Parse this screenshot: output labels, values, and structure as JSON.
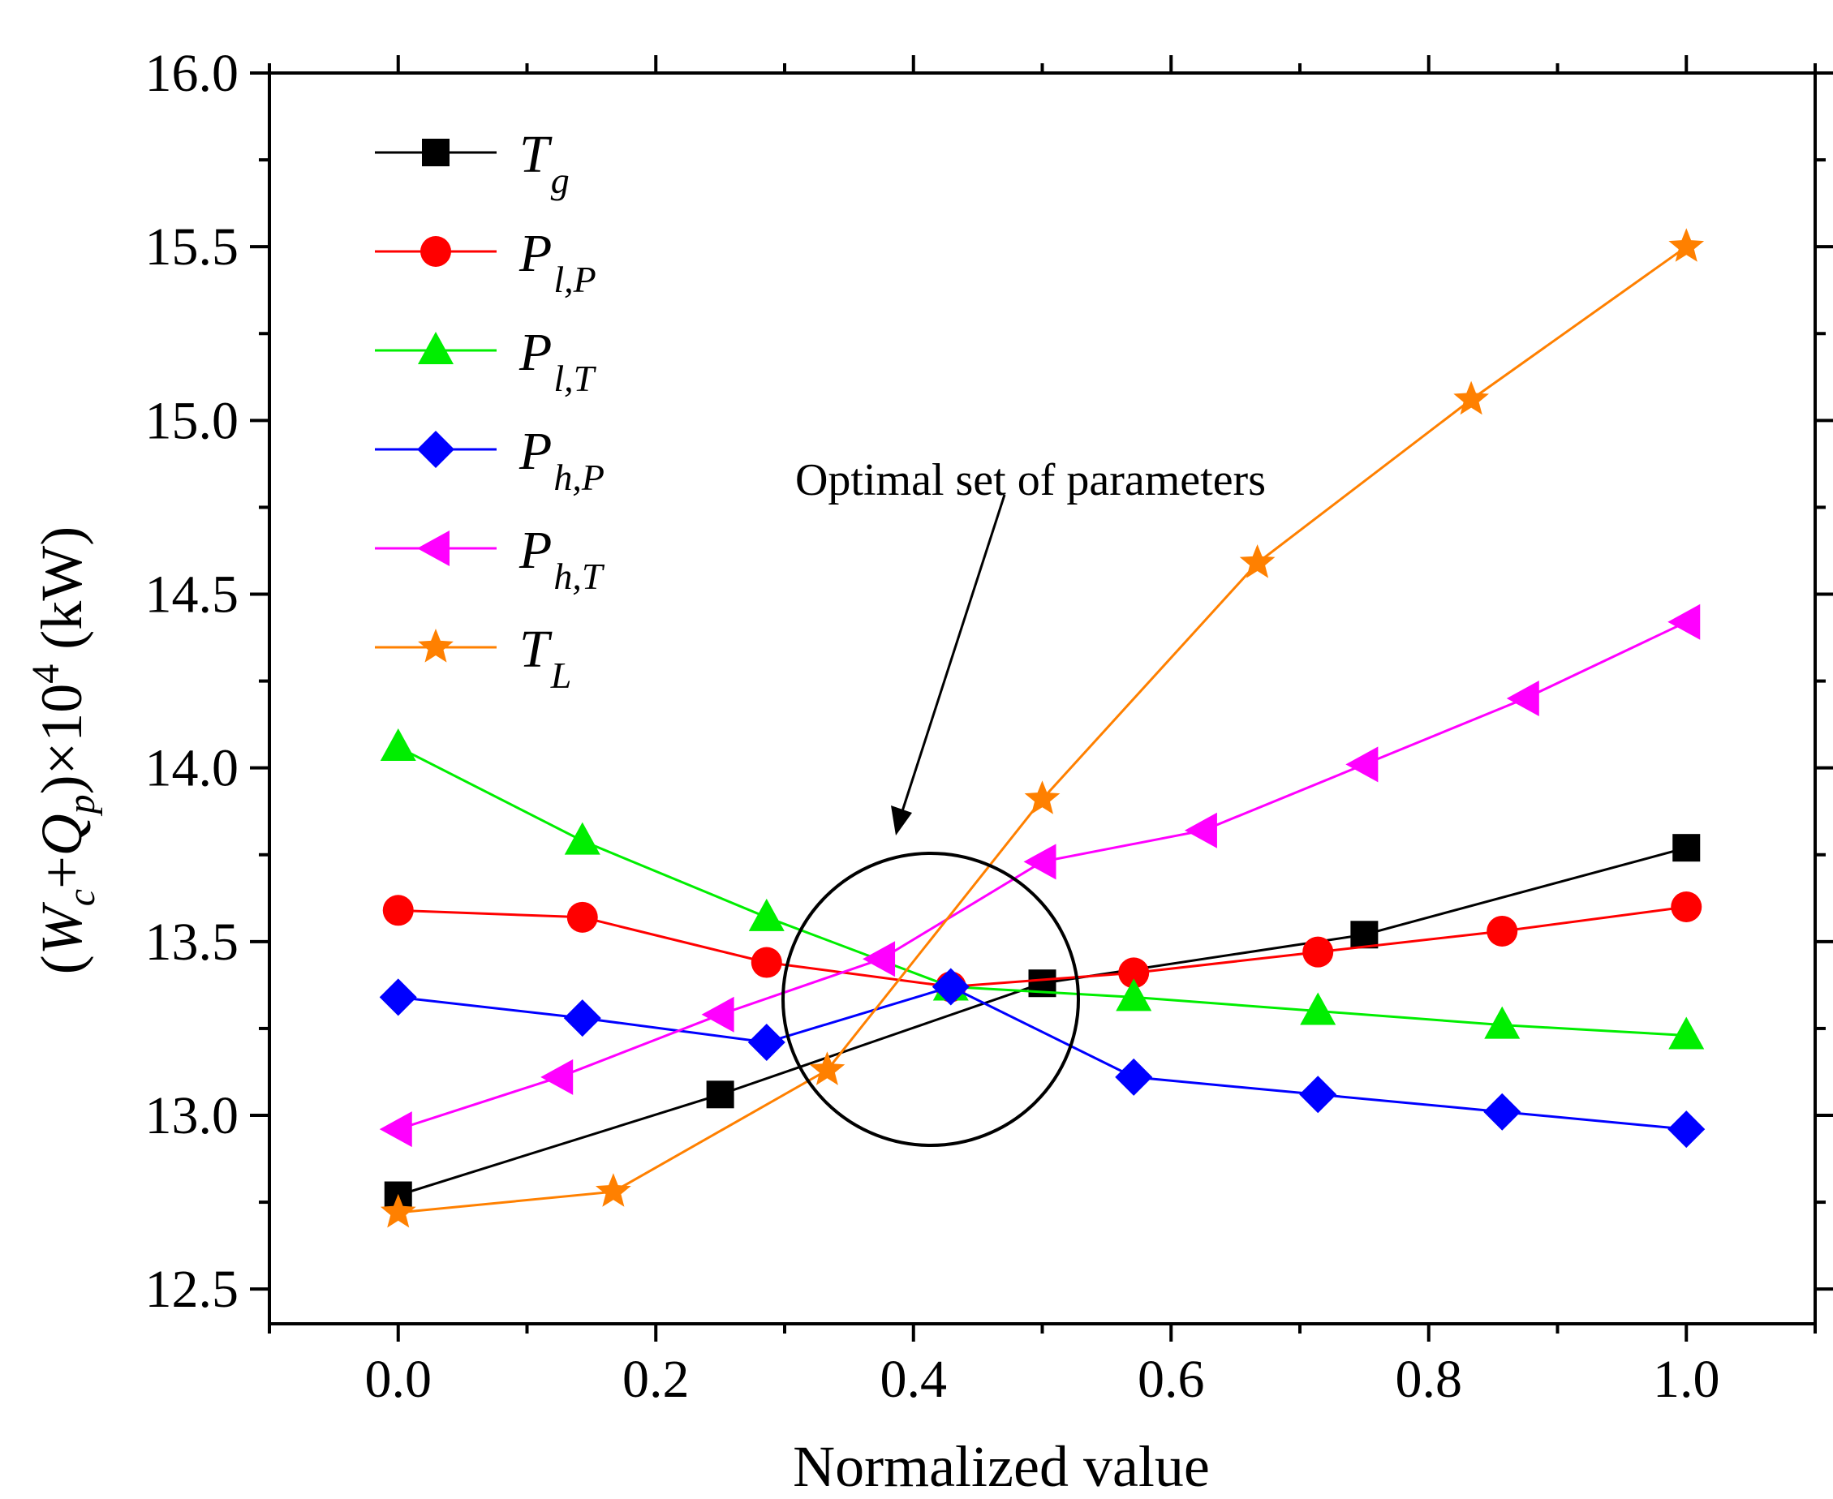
{
  "chart_data": {
    "type": "line",
    "xlabel": "Normalized value",
    "ylabel": "(W_c+Q_p)×10^4 (kW)",
    "xlim": [
      -0.1,
      1.1
    ],
    "ylim": [
      12.4,
      16.0
    ],
    "xticks": [
      0.0,
      0.2,
      0.4,
      0.6,
      0.8,
      1.0
    ],
    "xtick_labels": [
      "0.0",
      "0.2",
      "0.4",
      "0.6",
      "0.8",
      "1.0"
    ],
    "yticks": [
      12.5,
      13.0,
      13.5,
      14.0,
      14.5,
      15.0,
      15.5,
      16.0
    ],
    "ytick_labels": [
      "12.5",
      "13.0",
      "13.5",
      "14.0",
      "14.5",
      "15.0",
      "15.5",
      "16.0"
    ],
    "grid": false,
    "legend_position": "top-left",
    "annotation": "Optimal set of parameters",
    "series": [
      {
        "name": "Tg",
        "base": "T",
        "sub": "g",
        "color": "#000000",
        "marker": "square",
        "x": [
          0.0,
          0.25,
          0.5,
          0.75,
          1.0
        ],
        "y": [
          12.77,
          13.06,
          13.38,
          13.52,
          13.77
        ]
      },
      {
        "name": "Pl,P",
        "base": "P",
        "sub": "l,P",
        "color": "#ff0000",
        "marker": "circle",
        "x": [
          0.0,
          0.143,
          0.286,
          0.429,
          0.571,
          0.714,
          0.857,
          1.0
        ],
        "y": [
          13.59,
          13.57,
          13.44,
          13.37,
          13.41,
          13.47,
          13.53,
          13.6
        ]
      },
      {
        "name": "Pl,T",
        "base": "P",
        "sub": "l,T",
        "color": "#00ee00",
        "marker": "triangle-up",
        "x": [
          0.0,
          0.143,
          0.286,
          0.429,
          0.571,
          0.714,
          0.857,
          1.0
        ],
        "y": [
          14.06,
          13.79,
          13.57,
          13.37,
          13.34,
          13.3,
          13.26,
          13.23
        ]
      },
      {
        "name": "Ph,P",
        "base": "P",
        "sub": "h,P",
        "color": "#0000ff",
        "marker": "diamond",
        "x": [
          0.0,
          0.143,
          0.286,
          0.429,
          0.571,
          0.714,
          0.857,
          1.0
        ],
        "y": [
          13.34,
          13.28,
          13.21,
          13.37,
          13.11,
          13.06,
          13.01,
          12.96
        ]
      },
      {
        "name": "Ph,T",
        "base": "P",
        "sub": "h,T",
        "color": "#ff00ff",
        "marker": "triangle-left",
        "x": [
          0.0,
          0.125,
          0.25,
          0.375,
          0.5,
          0.625,
          0.75,
          0.875,
          1.0
        ],
        "y": [
          12.96,
          13.11,
          13.29,
          13.45,
          13.73,
          13.82,
          14.01,
          14.2,
          14.42
        ]
      },
      {
        "name": "TL",
        "base": "T",
        "sub": "L",
        "color": "#ff8000",
        "marker": "star",
        "x": [
          0.0,
          0.167,
          0.333,
          0.5,
          0.667,
          0.833,
          1.0
        ],
        "y": [
          12.72,
          12.78,
          13.13,
          13.91,
          14.59,
          15.06,
          15.5
        ]
      }
    ]
  }
}
